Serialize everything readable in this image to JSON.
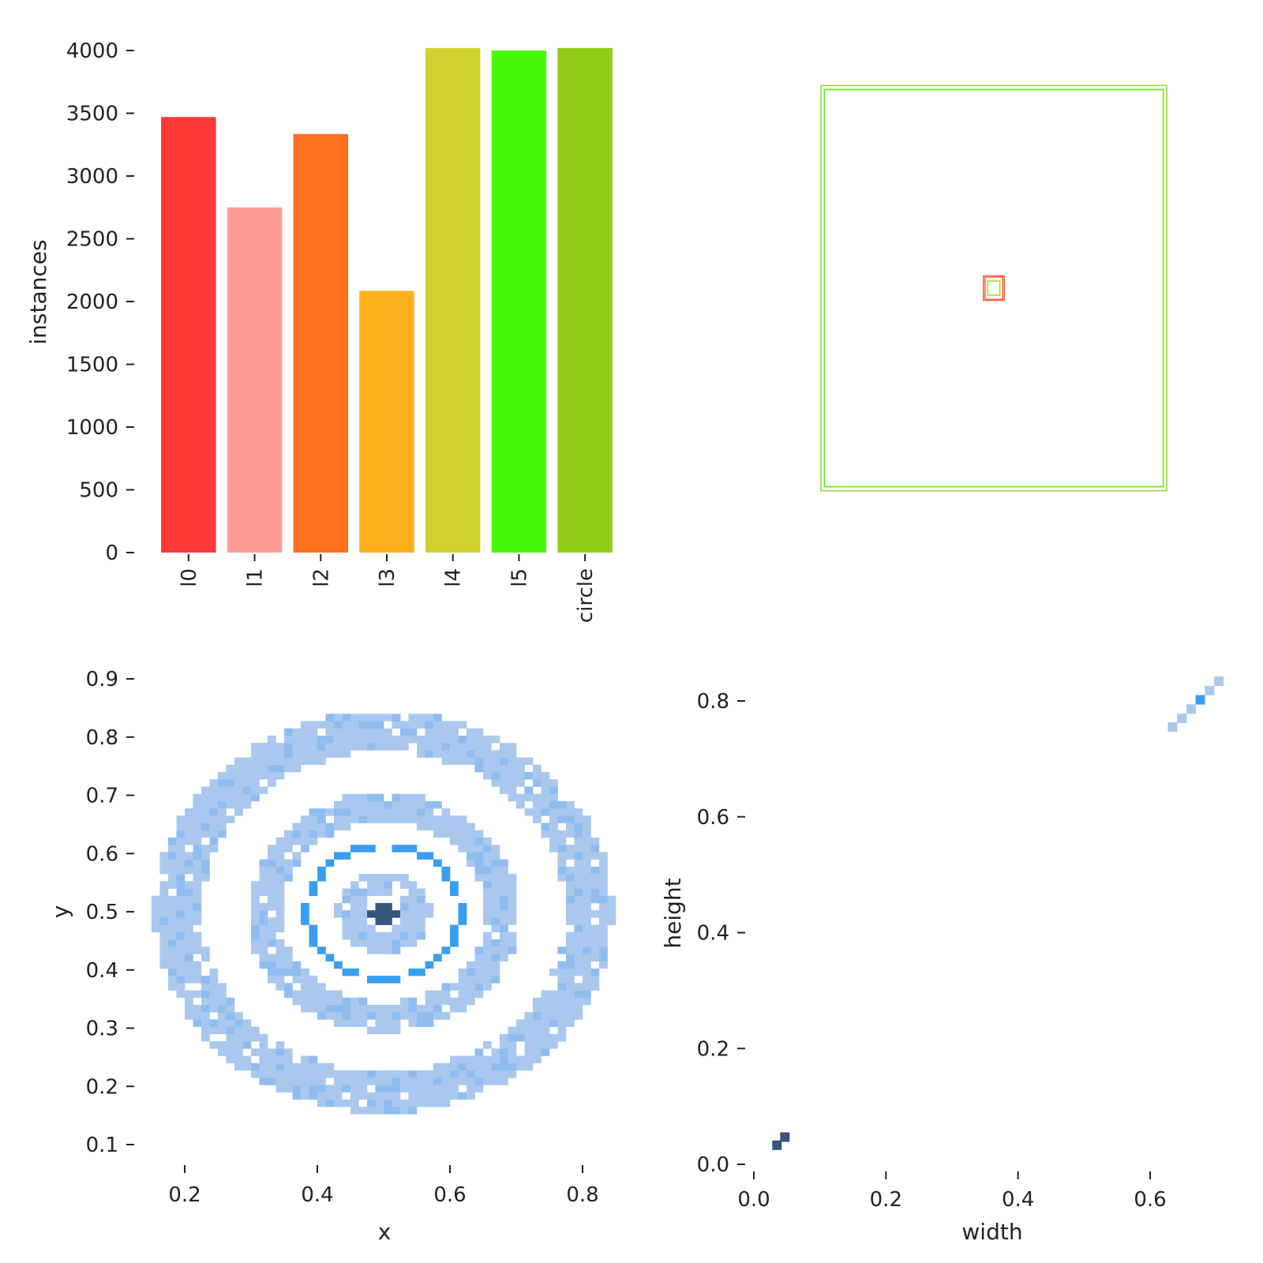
{
  "chart_data": [
    {
      "type": "bar",
      "categories": [
        "l0",
        "l1",
        "l2",
        "l3",
        "l4",
        "l5",
        "circle"
      ],
      "values": [
        3470,
        2750,
        3335,
        2085,
        4020,
        4000,
        4020
      ],
      "colors": [
        "#ff3838",
        "#ff9d97",
        "#ff701f",
        "#ffb21d",
        "#cfd231",
        "#48f90a",
        "#92cc17"
      ],
      "xlabel": "",
      "ylabel": "instances",
      "ylim": [
        0,
        4000
      ],
      "yticks": [
        "0",
        "500",
        "1000",
        "1500",
        "2000",
        "2500",
        "3000",
        "3500",
        "4000"
      ],
      "grid": false
    },
    {
      "type": "box-overlay",
      "description_of_content": "normalized box outlines centered at (0.5, 0.5)",
      "boxes": [
        {
          "width": 1.0,
          "height": 1.0,
          "color": "#92cc17"
        },
        {
          "width": 0.98,
          "height": 0.98,
          "color": "#cfd231"
        },
        {
          "width": 0.98,
          "height": 0.98,
          "color": "#48f90a"
        },
        {
          "width": 0.06,
          "height": 0.06,
          "color": "#ff3838"
        },
        {
          "width": 0.055,
          "height": 0.055,
          "color": "#ff9d97"
        },
        {
          "width": 0.05,
          "height": 0.055,
          "color": "#ff701f"
        },
        {
          "width": 0.035,
          "height": 0.035,
          "color": "#92cc17"
        }
      ]
    },
    {
      "type": "heatmap",
      "xlabel": "x",
      "ylabel": "y",
      "xticks": [
        "0.2",
        "0.4",
        "0.6",
        "0.8"
      ],
      "yticks": [
        "0.1",
        "0.2",
        "0.3",
        "0.4",
        "0.5",
        "0.6",
        "0.7",
        "0.8",
        "0.9"
      ],
      "xlim": [
        0.15,
        0.85
      ],
      "ylim": [
        0.09,
        0.91
      ],
      "colors": [
        "#aac8ee",
        "#8fbdf0",
        "#3a9ef0",
        "#2f6fa8",
        "#34567c"
      ],
      "rings": [
        {
          "center": [
            0.5,
            0.5
          ],
          "radius": 0.31,
          "thickness": 0.07,
          "level": 0
        },
        {
          "center": [
            0.5,
            0.5
          ],
          "radius": 0.18,
          "thickness": 0.05,
          "level": 0
        },
        {
          "center": [
            0.5,
            0.5
          ],
          "radius": 0.115,
          "thickness": 0.01,
          "level": 2
        },
        {
          "center": [
            0.5,
            0.5
          ],
          "radius": 0.05,
          "thickness": 0.04,
          "level": 0
        },
        {
          "center": [
            0.5,
            0.5
          ],
          "radius": 0.0,
          "thickness": 0.03,
          "level": 4
        }
      ]
    },
    {
      "type": "heatmap",
      "xlabel": "width",
      "ylabel": "height",
      "xticks": [
        "0.0",
        "0.2",
        "0.4",
        "0.6"
      ],
      "yticks": [
        "0.0",
        "0.2",
        "0.4",
        "0.6",
        "0.8"
      ],
      "xlim": [
        -0.01,
        0.72
      ],
      "ylim": [
        -0.01,
        0.84
      ],
      "cells": [
        {
          "width": 0.035,
          "height": 0.033,
          "level": 4
        },
        {
          "width": 0.047,
          "height": 0.047,
          "level": 4
        },
        {
          "width": 0.634,
          "height": 0.755,
          "level": 0
        },
        {
          "width": 0.648,
          "height": 0.77,
          "level": 0
        },
        {
          "width": 0.662,
          "height": 0.786,
          "level": 0
        },
        {
          "width": 0.676,
          "height": 0.802,
          "level": 2
        },
        {
          "width": 0.69,
          "height": 0.818,
          "level": 0
        },
        {
          "width": 0.704,
          "height": 0.834,
          "level": 0
        }
      ]
    }
  ]
}
